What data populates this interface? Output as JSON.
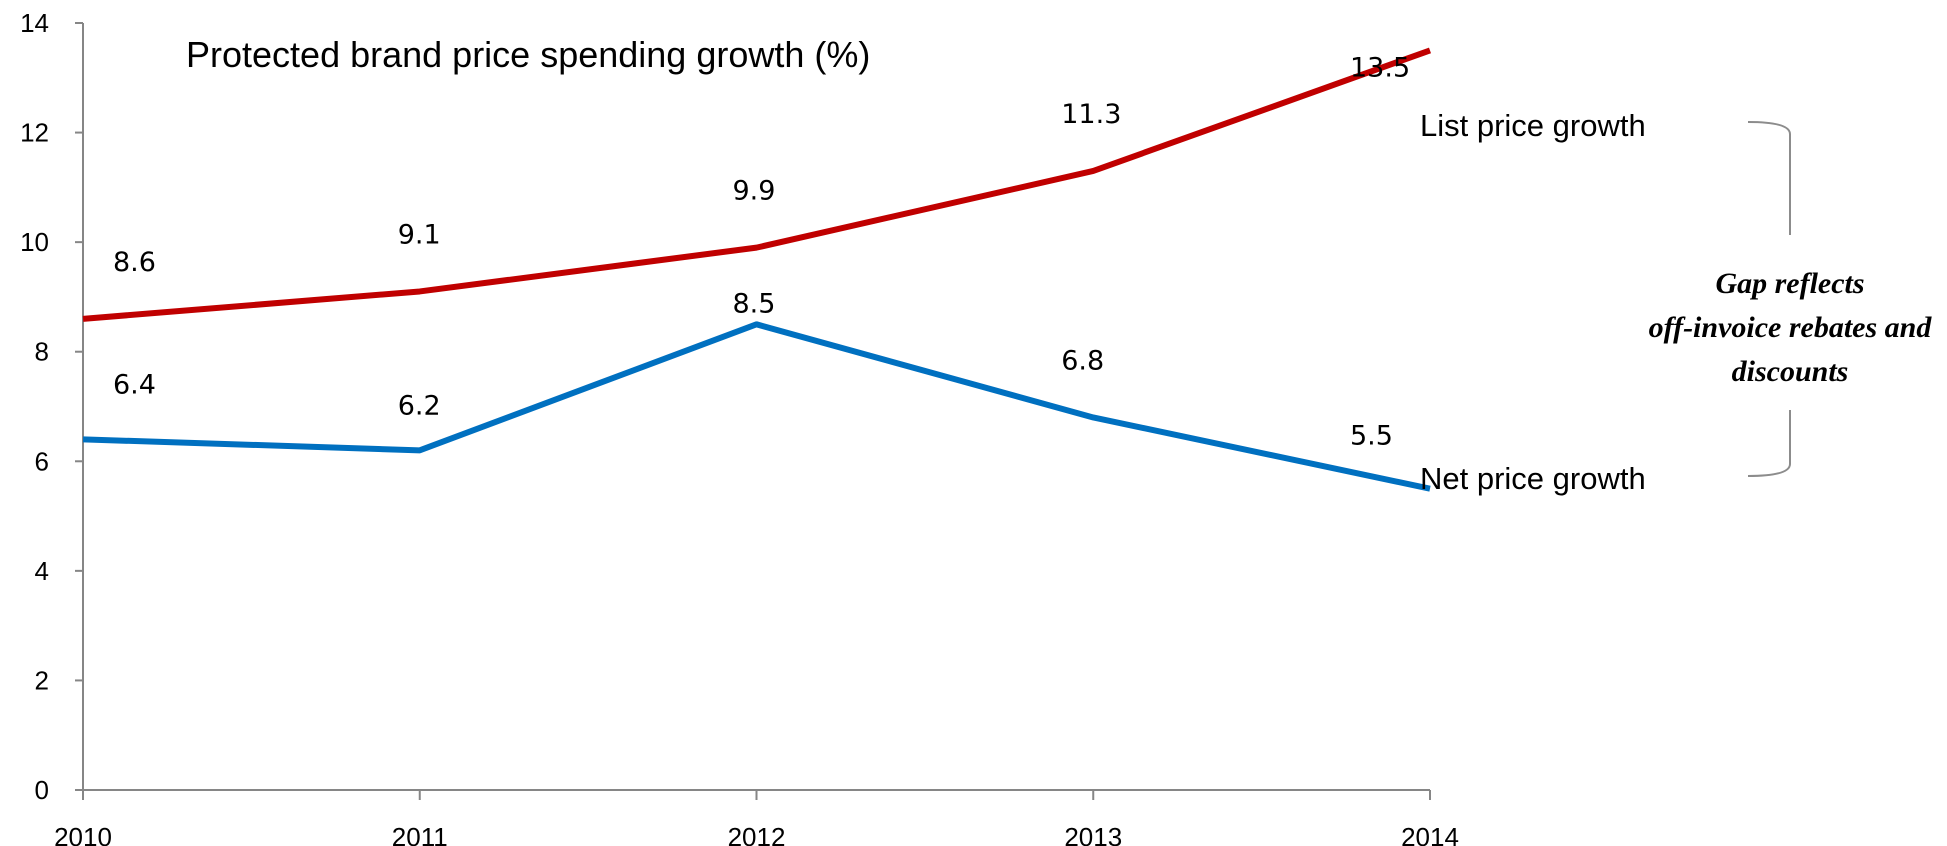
{
  "chart_data": {
    "type": "line",
    "title": "Protected brand price spending growth (%)",
    "categories": [
      "2010",
      "2011",
      "2012",
      "2013",
      "2014"
    ],
    "ylim": [
      0,
      14
    ],
    "yticks": [
      0,
      2,
      4,
      6,
      8,
      10,
      12,
      14
    ],
    "grid": false,
    "legend": "none",
    "series": [
      {
        "name": "List price growth",
        "color": "#C00000",
        "values": [
          8.6,
          9.1,
          9.9,
          11.3,
          13.5
        ],
        "labels": [
          "8.6",
          "9.1",
          "9.9",
          "11.3",
          "13.5"
        ]
      },
      {
        "name": "Net price growth",
        "color": "#0070C0",
        "values": [
          6.4,
          6.2,
          8.5,
          6.8,
          5.5
        ],
        "labels": [
          "6.4",
          "6.2",
          "8.5",
          "6.8",
          "5.5"
        ]
      }
    ],
    "annotations": {
      "gap_note": [
        "Gap reflects",
        "off-invoice rebates and",
        "discounts"
      ]
    }
  }
}
